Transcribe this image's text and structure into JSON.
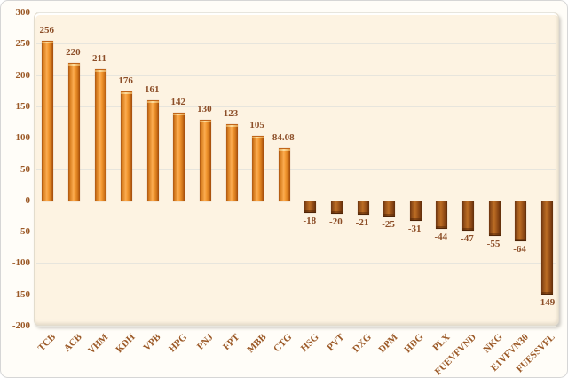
{
  "chart_data": {
    "type": "bar",
    "title": "",
    "xlabel": "",
    "ylabel": "",
    "categories": [
      "TCB",
      "ACB",
      "VHM",
      "KDH",
      "VPB",
      "HPG",
      "PNJ",
      "FPT",
      "MBB",
      "CTG",
      "HSG",
      "PVT",
      "DXG",
      "DPM",
      "HDG",
      "PLX",
      "FUEVFVND",
      "NKG",
      "E1VFVN30",
      "FUESSVFL"
    ],
    "values": [
      256,
      220,
      211,
      176,
      161,
      142,
      130,
      123,
      105,
      84.08,
      -18,
      -20,
      -21,
      -25,
      -31,
      -44,
      -47,
      -55,
      -64,
      -149
    ],
    "value_labels": [
      "256",
      "220",
      "211",
      "176",
      "161",
      "142",
      "130",
      "123",
      "105",
      "84.08",
      "-18",
      "-20",
      "-21",
      "-25",
      "-31",
      "-44",
      "-47",
      "-55",
      "-64",
      "-149"
    ],
    "ylim": [
      -200,
      300
    ],
    "ytick_step": 50,
    "ytick_labels": [
      "300",
      "250",
      "200",
      "150",
      "100",
      "50",
      "0",
      "-50",
      "-100",
      "-150",
      "-200"
    ],
    "grid": true,
    "legend_position": "none",
    "colors": {
      "positive_bar": "#f79e3d",
      "positive_bar_edge": "#ab5510",
      "positive_cap": "#ffdf9e",
      "negative_bar": "#aa5e1d",
      "negative_bar_edge": "#6b3410",
      "negative_cap": "#5e2d0a",
      "plot_background": "#fdf3e2",
      "chart_background": "#fffdf8",
      "gridline": "#e7e5dd",
      "tick_text": "#9c5a28",
      "value_text": "#8c4e28",
      "category_text": "#9c5a28",
      "frame_border": "#d6d6d6"
    }
  }
}
